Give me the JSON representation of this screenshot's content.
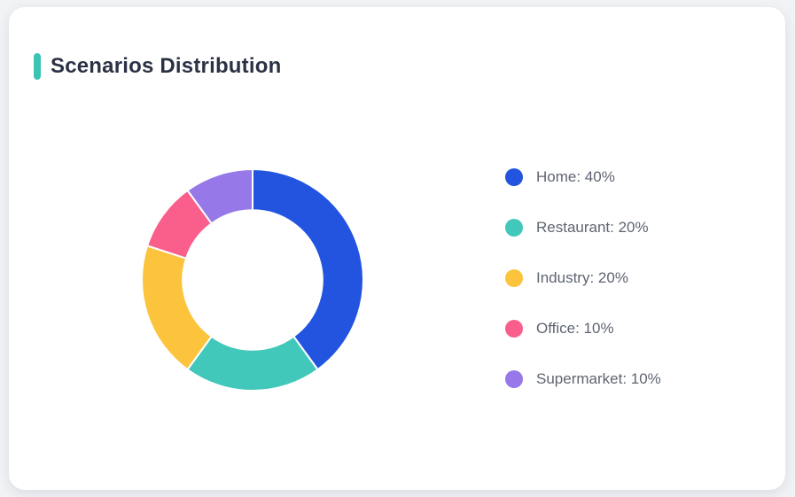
{
  "card": {
    "title": "Scenarios Distribution"
  },
  "colors": {
    "page_bg": "#f2f3f5",
    "card_bg": "#ffffff",
    "accent_bar": "#3bc4b4",
    "title_text": "#2b3245",
    "legend_text": "#5e6471",
    "slice_separator": "#ffffff"
  },
  "chart_data": {
    "type": "pie",
    "title": "Scenarios Distribution",
    "donut": true,
    "inner_radius_ratio": 0.63,
    "start_angle": "top",
    "direction": "clockwise",
    "legend_position": "right",
    "legend_format": "{label}: {value}%",
    "segments": [
      {
        "label": "Home",
        "value": 40,
        "color": "#2254e0"
      },
      {
        "label": "Restaurant",
        "value": 20,
        "color": "#41c8ba"
      },
      {
        "label": "Industry",
        "value": 20,
        "color": "#fcc33d"
      },
      {
        "label": "Office",
        "value": 10,
        "color": "#fa5f8c"
      },
      {
        "label": "Supermarket",
        "value": 10,
        "color": "#9678e8"
      }
    ]
  }
}
